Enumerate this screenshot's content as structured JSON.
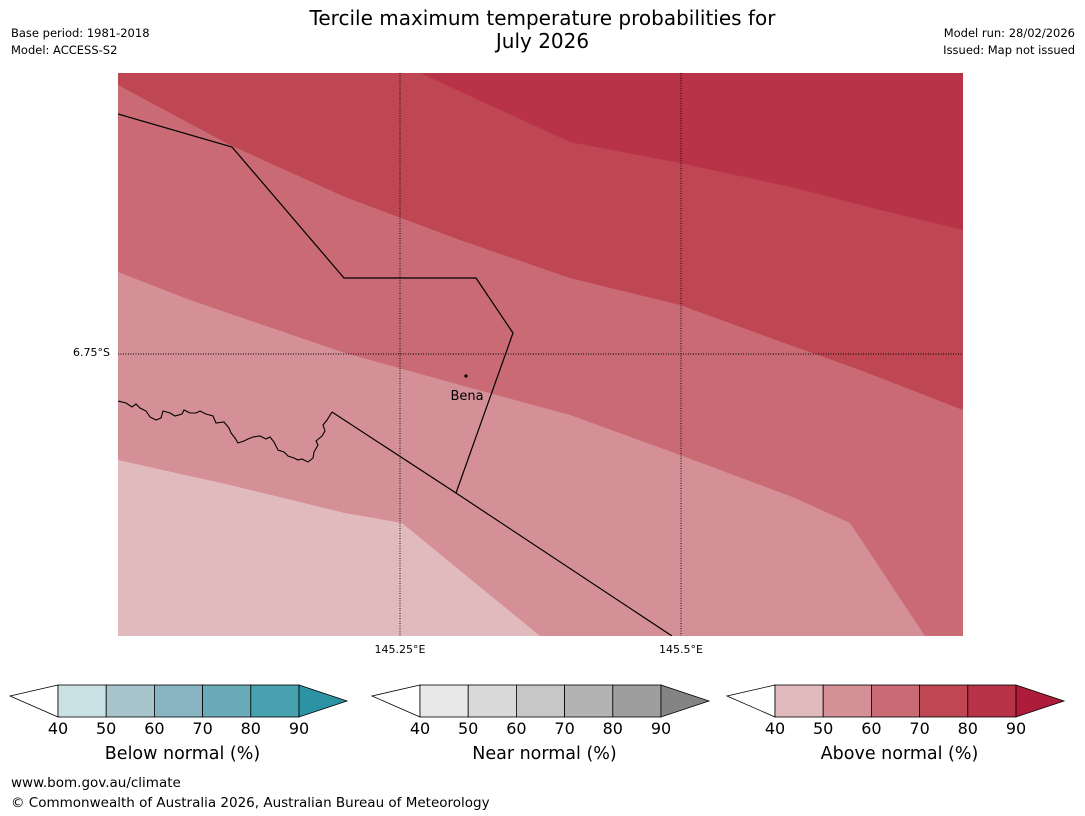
{
  "title": {
    "line1": "Tercile maximum temperature probabilities for",
    "line2": "July 2026"
  },
  "meta_left": {
    "base_period": "Base period: 1981-2018",
    "model": "Model: ACCESS-S2"
  },
  "meta_right": {
    "model_run": "Model run: 28/02/2026",
    "issued": "Issued: Map not issued"
  },
  "map": {
    "lat_label": "6.75°S",
    "lon_labels": [
      "145.25°E",
      "145.5°E"
    ],
    "place_name": "Bena",
    "fill_colors": [
      "#e1babe",
      "#d59097",
      "#c96a74",
      "#bf4653",
      "#b83248"
    ]
  },
  "legends": [
    {
      "title": "Below normal (%)",
      "ticks": [
        "40",
        "50",
        "60",
        "70",
        "80",
        "90"
      ],
      "colors": [
        "#ffffff",
        "#cae2e6",
        "#a6c4ca",
        "#89b4c1",
        "#6aabb8",
        "#47a1ae",
        "#2b93a3"
      ]
    },
    {
      "title": "Near normal (%)",
      "ticks": [
        "40",
        "50",
        "60",
        "70",
        "80",
        "90"
      ],
      "colors": [
        "#ffffff",
        "#e8e8e8",
        "#d9d9d9",
        "#c7c7c7",
        "#b3b3b3",
        "#9e9e9e",
        "#848484"
      ]
    },
    {
      "title": "Above normal (%)",
      "ticks": [
        "40",
        "50",
        "60",
        "70",
        "80",
        "90"
      ],
      "colors": [
        "#ffffff",
        "#e1babe",
        "#d59097",
        "#c96a74",
        "#bf4653",
        "#b83248",
        "#ad1c3a"
      ]
    }
  ],
  "footer": {
    "url": "www.bom.gov.au/climate",
    "copyright": "© Commonwealth of Australia 2026, Australian Bureau of Meteorology"
  }
}
